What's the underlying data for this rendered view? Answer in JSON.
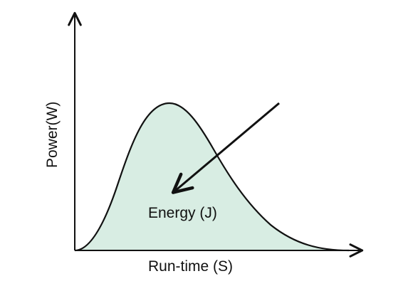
{
  "diagram": {
    "x_axis_label": "Run-time (S)",
    "y_axis_label": "Power(W)",
    "area_label": "Energy (J)",
    "colors": {
      "axis": "#111111",
      "curve": "#111111",
      "fill": "#d8ede3",
      "arrow": "#111111",
      "text": "#111111"
    }
  }
}
